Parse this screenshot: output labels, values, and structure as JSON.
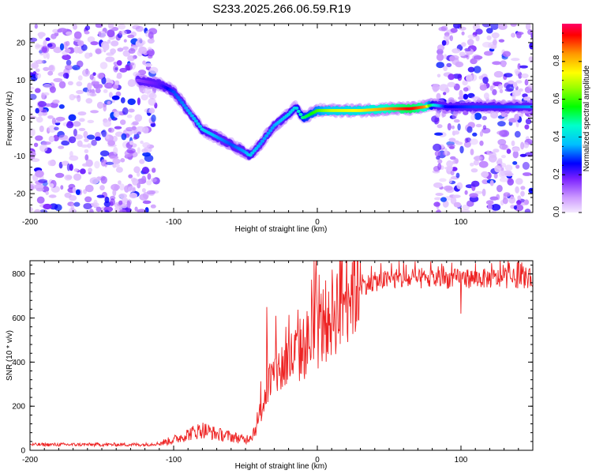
{
  "title": "S233.2025.266.06.59.R19",
  "chart_data": [
    {
      "type": "heatmap",
      "xlabel": "Height of straight line (km)",
      "ylabel": "Frequency (Hz)",
      "xlim": [
        -200,
        150
      ],
      "ylim": [
        -25,
        25
      ],
      "x_ticks": [
        -200,
        -100,
        0,
        100
      ],
      "y_ticks": [
        20,
        10,
        0,
        -10,
        -20
      ],
      "colorbar": {
        "label": "Normalized spectral amplitude",
        "range": [
          0.0,
          1.0
        ],
        "ticks": [
          "0.0",
          "0.2",
          "0.4",
          "0.6",
          "0.8"
        ]
      },
      "noise_regions_km": [
        [
          -200,
          -112
        ],
        [
          82,
          150
        ]
      ],
      "ridge": {
        "x": [
          -125,
          -110,
          -100,
          -90,
          -80,
          -70,
          -60,
          -50,
          -47,
          -40,
          -30,
          -20,
          -15,
          -10,
          0,
          10,
          30,
          50,
          65,
          75,
          80,
          90,
          110,
          130,
          150
        ],
        "frequency_hz": [
          10,
          9,
          7,
          2,
          -3,
          -5,
          -7,
          -9,
          -10,
          -7,
          -2,
          1,
          3,
          0,
          2,
          2,
          2,
          2.5,
          2.5,
          3,
          3.5,
          3,
          3,
          3,
          3
        ],
        "amplitude": [
          0.15,
          0.2,
          0.3,
          0.35,
          0.4,
          0.35,
          0.3,
          0.35,
          0.4,
          0.35,
          0.35,
          0.4,
          0.4,
          0.5,
          0.6,
          0.7,
          0.75,
          0.85,
          0.95,
          0.85,
          0.45,
          0.25,
          0.3,
          0.3,
          0.35
        ]
      }
    },
    {
      "type": "line",
      "xlabel": "Height of straight line (km)",
      "ylabel": "SNR (10 * v/v)",
      "xlim": [
        -200,
        150
      ],
      "ylim": [
        0,
        860
      ],
      "x_ticks": [
        -200,
        -100,
        0,
        100
      ],
      "y_ticks": [
        0,
        200,
        400,
        600,
        800
      ],
      "color": "#ee2222",
      "trend": {
        "x": [
          -200,
          -120,
          -110,
          -100,
          -90,
          -80,
          -70,
          -60,
          -50,
          -45,
          -40,
          -35,
          -30,
          -25,
          -20,
          -15,
          -10,
          -5,
          0,
          5,
          10,
          15,
          20,
          25,
          30,
          40,
          50,
          70,
          100,
          150
        ],
        "snr": [
          25,
          25,
          30,
          45,
          70,
          90,
          70,
          60,
          45,
          70,
          150,
          280,
          330,
          360,
          390,
          420,
          450,
          480,
          520,
          560,
          600,
          640,
          690,
          720,
          740,
          760,
          770,
          770,
          775,
          775
        ]
      },
      "spikes": [
        {
          "x": -35,
          "snr": 650
        },
        {
          "x": -29,
          "snr": 610
        },
        {
          "x": -22,
          "snr": 560
        },
        {
          "x": -10,
          "snr": 540
        },
        {
          "x": 0,
          "snr": 660
        },
        {
          "x": 8,
          "snr": 720
        },
        {
          "x": 20,
          "snr": 780
        },
        {
          "x": 30,
          "snr": 855
        },
        {
          "x": 60,
          "snr": 855
        },
        {
          "x": 100,
          "snr": 850
        },
        {
          "x": 140,
          "snr": 860
        },
        {
          "x": 100,
          "snr": 620
        }
      ]
    }
  ]
}
